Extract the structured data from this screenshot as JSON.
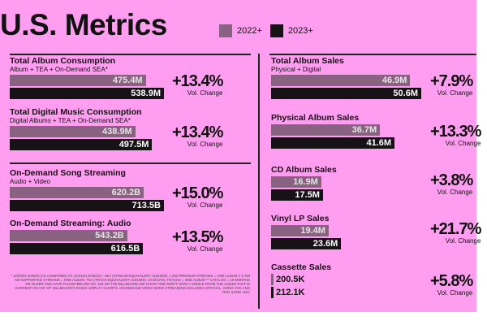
{
  "title": "U.S. Metrics",
  "legend": [
    {
      "label": "2022+",
      "color": "#8a6281"
    },
    {
      "label": "2023+",
      "color": "#161216"
    }
  ],
  "change_label": "Vol. Change",
  "chart_data": [
    {
      "type": "bar",
      "title": "Total Album Consumption",
      "subtitle": "Album + TEA + On-Demand SEA*",
      "categories": [
        "2022+",
        "2023+"
      ],
      "values": [
        475.4,
        538.9
      ],
      "value_labels": [
        "475.4M",
        "538.9M"
      ],
      "change": "+13.4%"
    },
    {
      "type": "bar",
      "title": "Total Digital Music Consumption",
      "subtitle": "Digital Albums + TEA + On-Demand SEA*",
      "categories": [
        "2022+",
        "2023+"
      ],
      "values": [
        438.9,
        497.5
      ],
      "value_labels": [
        "438.9M",
        "497.5M"
      ],
      "change": "+13.4%"
    },
    {
      "type": "bar",
      "title": "On-Demand Song Streaming",
      "subtitle": "Audio + Video",
      "categories": [
        "2022+",
        "2023+"
      ],
      "values": [
        620.2,
        713.5
      ],
      "value_labels": [
        "620.2B",
        "713.5B"
      ],
      "change": "+15.0%"
    },
    {
      "type": "bar",
      "title": "On-Demand Streaming: Audio",
      "subtitle": "",
      "categories": [
        "2022+",
        "2023+"
      ],
      "values": [
        543.2,
        616.5
      ],
      "value_labels": [
        "543.2B",
        "616.5B"
      ],
      "change": "+13.5%"
    },
    {
      "type": "bar",
      "title": "Total Album Sales",
      "subtitle": "Physical + Digital",
      "categories": [
        "2022+",
        "2023+"
      ],
      "values": [
        46.9,
        50.6
      ],
      "value_labels": [
        "46.9M",
        "50.6M"
      ],
      "change": "+7.9%"
    },
    {
      "type": "bar",
      "title": "Physical Album Sales",
      "subtitle": "",
      "categories": [
        "2022+",
        "2023+"
      ],
      "values": [
        36.7,
        41.6
      ],
      "value_labels": [
        "36.7M",
        "41.6M"
      ],
      "change": "+13.3%"
    },
    {
      "type": "bar",
      "title": "CD Album Sales",
      "subtitle": "",
      "categories": [
        "2022+",
        "2023+"
      ],
      "values": [
        16.9,
        17.5
      ],
      "value_labels": [
        "16.9M",
        "17.5M"
      ],
      "change": "+3.8%"
    },
    {
      "type": "bar",
      "title": "Vinyl LP Sales",
      "subtitle": "",
      "categories": [
        "2022+",
        "2023+"
      ],
      "values": [
        19.4,
        23.6
      ],
      "value_labels": [
        "19.4M",
        "23.6M"
      ],
      "change": "+21.7%"
    },
    {
      "type": "bar",
      "title": "Cassette Sales",
      "subtitle": "",
      "categories": [
        "2022+",
        "2023+"
      ],
      "values": [
        0.2005,
        0.2121
      ],
      "value_labels": [
        "200.5K",
        "212.1K"
      ],
      "change": "+5.8%"
    }
  ],
  "footnote": "* 12/30/22-6/29/23 (AS COMPARED TO 12/31/21-6/30/22) * SEA (STREAM-EQUIVALENT ALBUMS): 1,250 PREMIUM STREAMS = ONE ALBUM // 3,750 AD-SUPPORTED STREAMS = ONE ALBUM. TEA (TRACK-EQUIVALENT ALBUMS): 10 DIGITAL TRACKS = ONE ALBUM ** CATALOG = 18 MONTHS OR OLDER AND HAVE FALLEN BELOW NO. 100 ON THE BILLBOARD 200 CHART AND DON'T HAVE A SINGLE FROM THE ALBUM THAT IS CURRENT ON ANY OF BILLBOARD'S RADIO AIRPLAY CHARTS. ON-DEMAND VIDEO SONG STREAMING INCLUDES OFFICIAL, SONG VOC AND NON SONG UGC"
}
